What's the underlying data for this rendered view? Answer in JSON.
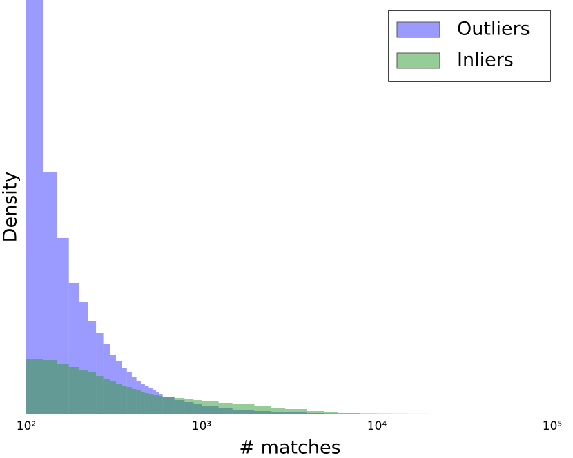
{
  "chart_data": {
    "type": "histogram",
    "x_label": "# matches",
    "y_label": "Density",
    "xscale": "log",
    "xlim": [
      100,
      100000
    ],
    "xticks": [
      {
        "value": 100,
        "label": "10²"
      },
      {
        "value": 1000,
        "label": "10³"
      },
      {
        "value": 10000,
        "label": "10⁴"
      },
      {
        "value": 100000,
        "label": "10⁵"
      }
    ],
    "ylim": [
      0,
      600
    ],
    "legend": "upper right",
    "bins": [
      100,
      125,
      150,
      175,
      200,
      225,
      250,
      275,
      300,
      325,
      350,
      375,
      400,
      425,
      450,
      475,
      500,
      525,
      550,
      575,
      600,
      700,
      800,
      900,
      1000,
      1250,
      1500,
      2000,
      2500,
      3000,
      4000,
      5000,
      6000,
      8000,
      10000,
      12000,
      15000,
      20000
    ],
    "series": [
      {
        "name": "Outliers",
        "color": "#3838ff",
        "values": [
          600,
          350,
          255,
          190,
          162,
          135,
          117,
          102,
          85,
          77,
          67,
          60,
          53,
          48,
          44,
          40,
          37,
          34,
          31,
          29,
          25,
          20,
          17,
          14,
          11,
          8,
          6,
          4,
          3,
          2,
          1,
          0.5,
          0.3,
          0.2,
          0.1,
          0.05,
          0
        ]
      },
      {
        "name": "Inliers",
        "color": "#2e9a2e",
        "values": [
          80,
          78,
          73,
          68,
          63,
          60,
          55,
          50,
          47,
          44,
          41,
          39,
          36,
          34,
          32,
          30,
          29,
          28,
          27,
          26,
          25,
          23,
          21,
          20,
          18,
          16,
          14,
          11,
          9,
          7,
          4,
          2,
          1,
          0.5,
          0.3,
          0.2,
          0.1
        ]
      }
    ]
  }
}
